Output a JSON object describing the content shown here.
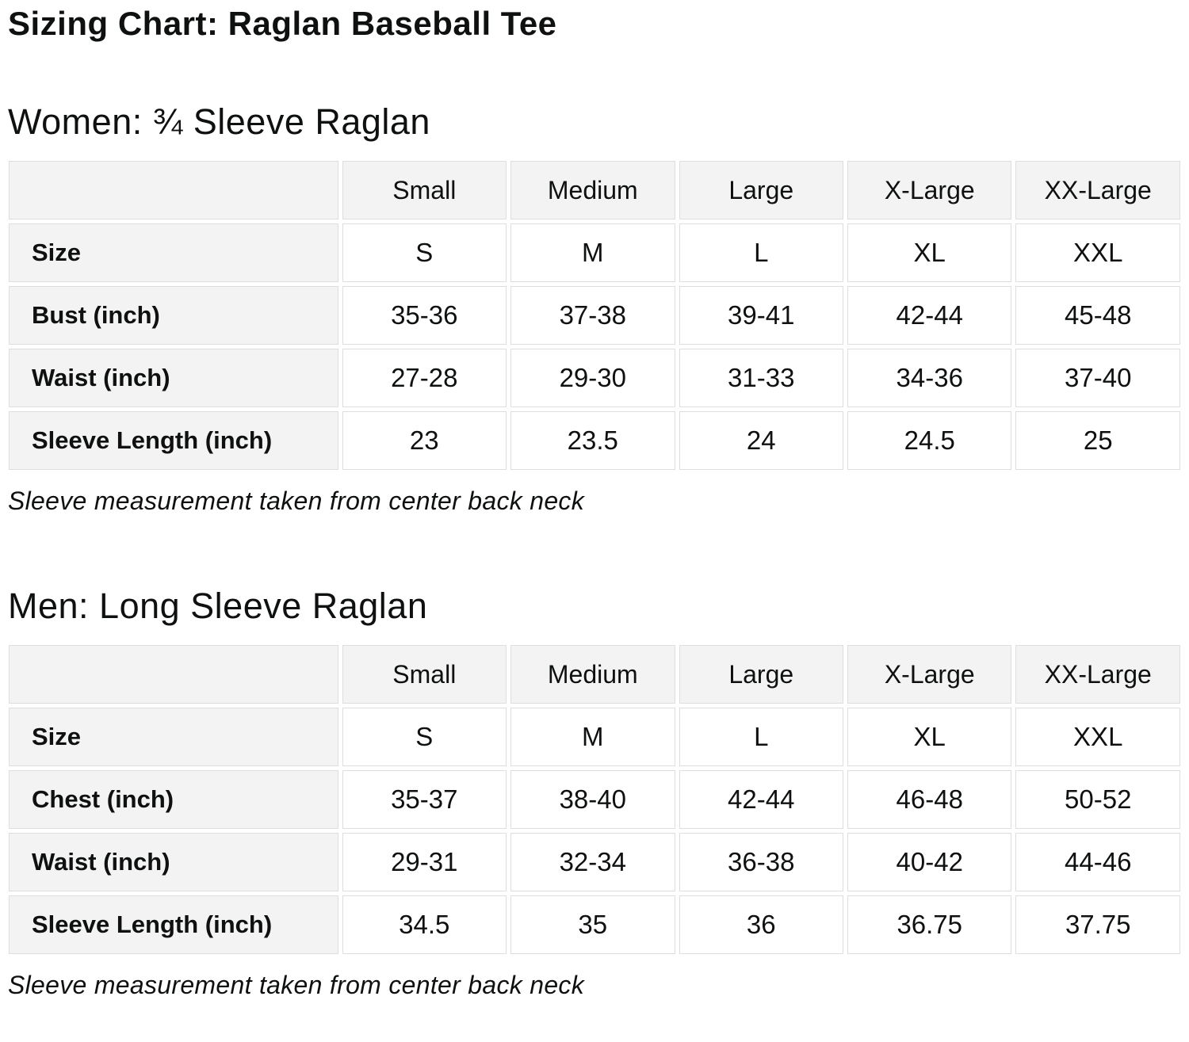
{
  "page": {
    "title": "Sizing Chart: Raglan Baseball Tee"
  },
  "colors": {
    "header_cell_bg": "#f3f3f3",
    "cell_border": "#dedede",
    "text": "#0f1111",
    "data_cell_bg": "#ffffff"
  },
  "tables": [
    {
      "heading": "Women: ¾ Sleeve Raglan",
      "columns": [
        "",
        "Small",
        "Medium",
        "Large",
        "X-Large",
        "XX-Large"
      ],
      "rows": [
        {
          "label": "Size",
          "values": [
            "S",
            "M",
            "L",
            "XL",
            "XXL"
          ]
        },
        {
          "label": "Bust (inch)",
          "values": [
            "35-36",
            "37-38",
            "39-41",
            "42-44",
            "45-48"
          ]
        },
        {
          "label": "Waist (inch)",
          "values": [
            "27-28",
            "29-30",
            "31-33",
            "34-36",
            "37-40"
          ]
        },
        {
          "label": "Sleeve Length (inch)",
          "values": [
            "23",
            "23.5",
            "24",
            "24.5",
            "25"
          ]
        }
      ],
      "note": "Sleeve measurement taken from center back neck"
    },
    {
      "heading": "Men: Long Sleeve Raglan",
      "columns": [
        "",
        "Small",
        "Medium",
        "Large",
        "X-Large",
        "XX-Large"
      ],
      "rows": [
        {
          "label": "Size",
          "values": [
            "S",
            "M",
            "L",
            "XL",
            "XXL"
          ]
        },
        {
          "label": "Chest (inch)",
          "values": [
            "35-37",
            "38-40",
            "42-44",
            "46-48",
            "50-52"
          ]
        },
        {
          "label": "Waist (inch)",
          "values": [
            "29-31",
            "32-34",
            "36-38",
            "40-42",
            "44-46"
          ]
        },
        {
          "label": "Sleeve Length (inch)",
          "values": [
            "34.5",
            "35",
            "36",
            "36.75",
            "37.75"
          ]
        }
      ],
      "note": "Sleeve measurement taken from center back neck"
    }
  ]
}
